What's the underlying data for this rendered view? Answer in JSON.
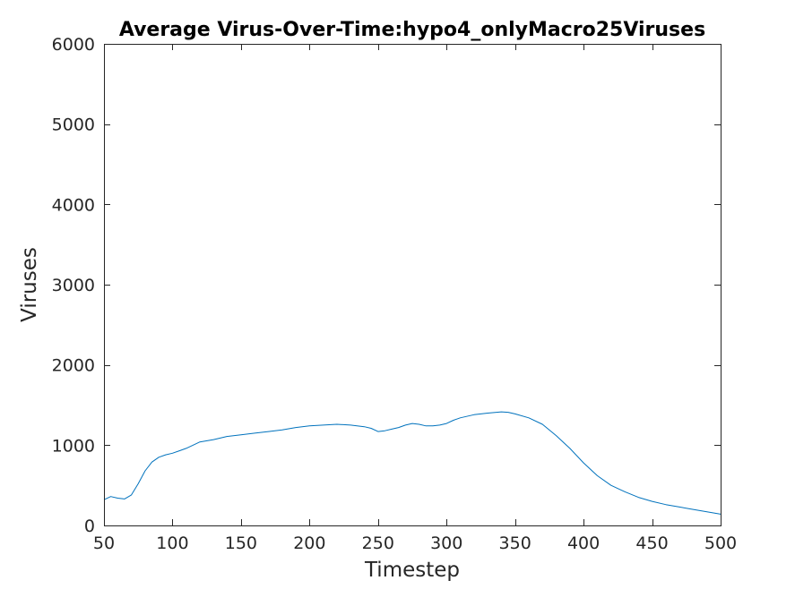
{
  "chart_data": {
    "type": "line",
    "title": "Average Virus-Over-Time:hypo4_onlyMacro25Viruses",
    "xlabel": "Timestep",
    "ylabel": "Viruses",
    "xlim": [
      50,
      500
    ],
    "ylim": [
      0,
      6000
    ],
    "xticks": [
      "50",
      "100",
      "150",
      "200",
      "250",
      "300",
      "350",
      "400",
      "450",
      "500"
    ],
    "yticks": [
      "0",
      "1000",
      "2000",
      "3000",
      "4000",
      "5000",
      "6000"
    ],
    "grid": false,
    "box": true,
    "series": [
      {
        "color": "#0072bd",
        "x": [
          50,
          55,
          60,
          65,
          70,
          75,
          80,
          85,
          90,
          95,
          100,
          105,
          110,
          115,
          120,
          130,
          140,
          150,
          160,
          170,
          180,
          190,
          200,
          210,
          220,
          230,
          240,
          245,
          250,
          255,
          260,
          265,
          270,
          275,
          280,
          285,
          290,
          295,
          300,
          305,
          310,
          320,
          330,
          340,
          345,
          350,
          360,
          370,
          380,
          390,
          400,
          410,
          420,
          430,
          440,
          450,
          460,
          470,
          480,
          490,
          500
        ],
        "y": [
          320,
          360,
          340,
          330,
          380,
          520,
          680,
          790,
          850,
          880,
          900,
          930,
          960,
          1000,
          1040,
          1070,
          1110,
          1130,
          1150,
          1170,
          1190,
          1220,
          1240,
          1250,
          1260,
          1250,
          1230,
          1210,
          1170,
          1180,
          1200,
          1220,
          1250,
          1270,
          1260,
          1240,
          1240,
          1250,
          1270,
          1310,
          1340,
          1380,
          1400,
          1415,
          1410,
          1390,
          1340,
          1260,
          1120,
          960,
          780,
          620,
          500,
          420,
          350,
          300,
          260,
          230,
          200,
          170,
          140
        ]
      }
    ]
  }
}
